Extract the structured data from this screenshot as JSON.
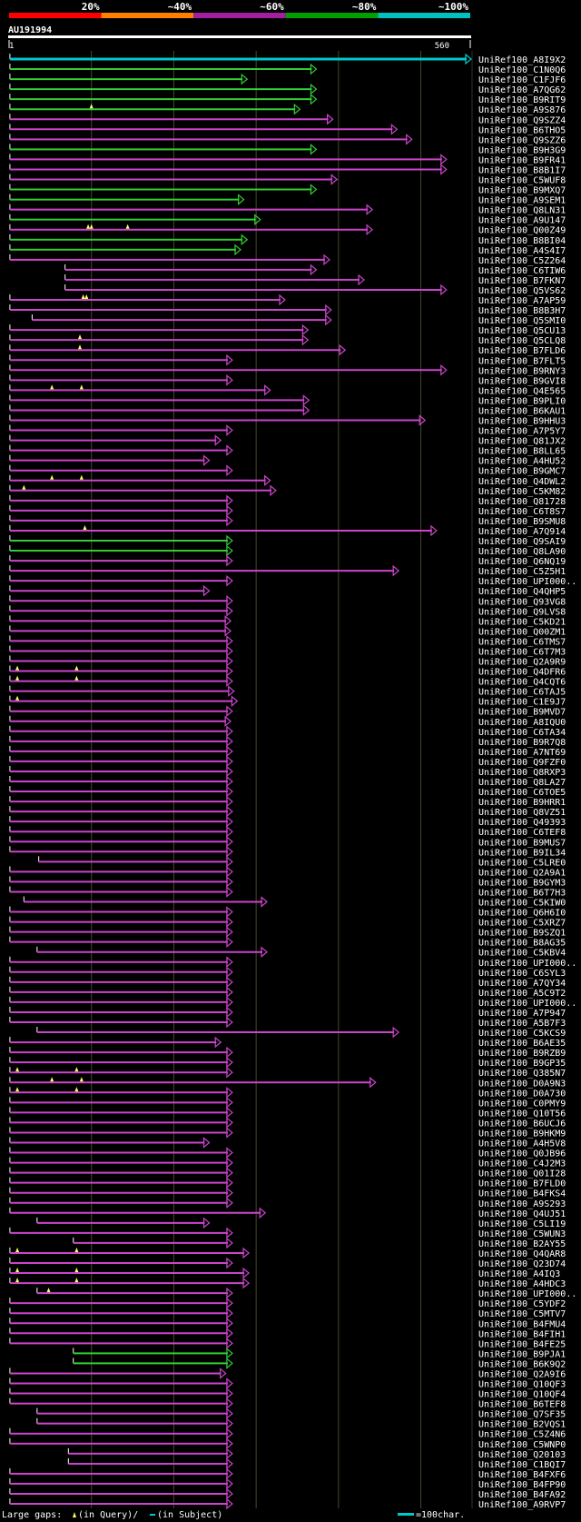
{
  "chart_data": {
    "type": "alignment-overview",
    "query": "AU191994",
    "query_start": "1",
    "query_end": "560",
    "query_length": 560,
    "percent_scale": {
      "labels": [
        "20%",
        "~40%",
        "~60%",
        "~80%",
        "~100%"
      ],
      "colors": [
        "#ff0000",
        "#ff8000",
        "#a020a0",
        "#00a000",
        "#00c0c0"
      ]
    },
    "gridlines": [
      100,
      200,
      300,
      400,
      500
    ],
    "legend": {
      "large_gaps": "Large gaps:",
      "in_query": "(in Query)/",
      "in_subject": "(in Subject)",
      "scale": "=100char."
    },
    "hits": [
      {
        "name": "UniRef100_A8I9X2",
        "s": 1,
        "e": 560,
        "c": "cyan"
      },
      {
        "name": "UniRef100_C1N0Q6",
        "s": 1,
        "e": 372,
        "c": "green"
      },
      {
        "name": "UniRef100_C1FJF6",
        "s": 1,
        "e": 288,
        "c": "green"
      },
      {
        "name": "UniRef100_A7QG62",
        "s": 1,
        "e": 372,
        "c": "green"
      },
      {
        "name": "UniRef100_B9RIT9",
        "s": 1,
        "e": 372,
        "c": "green"
      },
      {
        "name": "UniRef100_A9S876",
        "s": 1,
        "e": 352,
        "c": "green",
        "tri": [
          100
        ]
      },
      {
        "name": "UniRef100_Q9SZZ4",
        "s": 1,
        "e": 392,
        "c": "mag"
      },
      {
        "name": "UniRef100_B6THO5",
        "s": 1,
        "e": 470,
        "c": "mag"
      },
      {
        "name": "UniRef100_Q9SZZ6",
        "s": 1,
        "e": 488,
        "c": "mag"
      },
      {
        "name": "UniRef100_B9H3G9",
        "s": 1,
        "e": 372,
        "c": "green"
      },
      {
        "name": "UniRef100_B9FR41",
        "s": 1,
        "e": 530,
        "c": "mag"
      },
      {
        "name": "UniRef100_B8B1I7",
        "s": 1,
        "e": 530,
        "c": "mag"
      },
      {
        "name": "UniRef100_C5WUF8",
        "s": 1,
        "e": 397,
        "c": "mag"
      },
      {
        "name": "UniRef100_B9MXQ7",
        "s": 1,
        "e": 372,
        "c": "green"
      },
      {
        "name": "UniRef100_A9SEM1",
        "s": 1,
        "e": 284,
        "c": "green"
      },
      {
        "name": "UniRef100_Q8LN31",
        "s": 1,
        "e": 440,
        "c": "mag"
      },
      {
        "name": "UniRef100_A9U147",
        "s": 1,
        "e": 304,
        "c": "green"
      },
      {
        "name": "UniRef100_Q00Z49",
        "s": 1,
        "e": 440,
        "c": "mag",
        "tri": [
          96,
          100,
          144
        ]
      },
      {
        "name": "UniRef100_B8BI04",
        "s": 1,
        "e": 288,
        "c": "green"
      },
      {
        "name": "UniRef100_A4S4I7",
        "s": 1,
        "e": 280,
        "c": "green"
      },
      {
        "name": "UniRef100_C5Z264",
        "s": 1,
        "e": 388,
        "c": "mag"
      },
      {
        "name": "UniRef100_C6TIW6",
        "s": 68,
        "e": 372,
        "c": "mag"
      },
      {
        "name": "UniRef100_B7FKN7",
        "s": 68,
        "e": 430,
        "c": "mag"
      },
      {
        "name": "UniRef100_Q5VS62",
        "s": 68,
        "e": 530,
        "c": "mag"
      },
      {
        "name": "UniRef100_A7AP59",
        "s": 1,
        "e": 334,
        "c": "mag",
        "tri": [
          90,
          94
        ]
      },
      {
        "name": "UniRef100_B8B3H7",
        "s": 1,
        "e": 390,
        "c": "mag"
      },
      {
        "name": "UniRef100_Q5SMI0",
        "s": 28,
        "e": 390,
        "c": "mag"
      },
      {
        "name": "UniRef100_Q5CU13",
        "s": 1,
        "e": 362,
        "c": "mag"
      },
      {
        "name": "UniRef100_Q5CLQ8",
        "s": 1,
        "e": 362,
        "c": "mag",
        "tri": [
          86
        ]
      },
      {
        "name": "UniRef100_B7FLD6",
        "s": 1,
        "e": 407,
        "c": "mag",
        "tri": [
          86
        ]
      },
      {
        "name": "UniRef100_B7FLT5",
        "s": 1,
        "e": 270,
        "c": "mag"
      },
      {
        "name": "UniRef100_B9RNY3",
        "s": 1,
        "e": 530,
        "c": "mag"
      },
      {
        "name": "UniRef100_B9GVI8",
        "s": 1,
        "e": 270,
        "c": "mag"
      },
      {
        "name": "UniRef100_Q4E565",
        "s": 1,
        "e": 316,
        "c": "mag",
        "tri": [
          52,
          88
        ]
      },
      {
        "name": "UniRef100_B9PLI0",
        "s": 1,
        "e": 363,
        "c": "mag"
      },
      {
        "name": "UniRef100_B6KAU1",
        "s": 1,
        "e": 363,
        "c": "mag"
      },
      {
        "name": "UniRef100_B9HHU3",
        "s": 1,
        "e": 504,
        "c": "mag"
      },
      {
        "name": "UniRef100_A7P5Y7",
        "s": 1,
        "e": 270,
        "c": "mag"
      },
      {
        "name": "UniRef100_Q81JX2",
        "s": 1,
        "e": 256,
        "c": "mag"
      },
      {
        "name": "UniRef100_B8LL65",
        "s": 1,
        "e": 270,
        "c": "mag"
      },
      {
        "name": "UniRef100_A4HU52",
        "s": 1,
        "e": 242,
        "c": "mag"
      },
      {
        "name": "UniRef100_B9GMC7",
        "s": 1,
        "e": 270,
        "c": "mag"
      },
      {
        "name": "UniRef100_Q4DWL2",
        "s": 1,
        "e": 316,
        "c": "mag",
        "tri": [
          52,
          88
        ]
      },
      {
        "name": "UniRef100_C5KM82",
        "s": 1,
        "e": 323,
        "c": "mag",
        "tri": [
          18
        ]
      },
      {
        "name": "UniRef100_Q81728",
        "s": 1,
        "e": 270,
        "c": "mag"
      },
      {
        "name": "UniRef100_C6T8S7",
        "s": 1,
        "e": 270,
        "c": "mag"
      },
      {
        "name": "UniRef100_B9SMU8",
        "s": 1,
        "e": 270,
        "c": "mag"
      },
      {
        "name": "UniRef100_A7Q914",
        "s": 1,
        "e": 518,
        "c": "mag",
        "tri": [
          92
        ]
      },
      {
        "name": "UniRef100_Q9SAI9",
        "s": 1,
        "e": 270,
        "c": "green"
      },
      {
        "name": "UniRef100_Q8LA90",
        "s": 1,
        "e": 270,
        "c": "green"
      },
      {
        "name": "UniRef100_Q6NQ19",
        "s": 1,
        "e": 270,
        "c": "mag"
      },
      {
        "name": "UniRef100_C5Z5H1",
        "s": 1,
        "e": 472,
        "c": "mag"
      },
      {
        "name": "UniRef100_UPI000..",
        "s": 1,
        "e": 270,
        "c": "mag"
      },
      {
        "name": "UniRef100_Q4QHP5",
        "s": 1,
        "e": 242,
        "c": "mag"
      },
      {
        "name": "UniRef100_Q93VG8",
        "s": 1,
        "e": 270,
        "c": "mag"
      },
      {
        "name": "UniRef100_Q9LVS8",
        "s": 1,
        "e": 270,
        "c": "mag"
      },
      {
        "name": "UniRef100_C5KD21",
        "s": 1,
        "e": 268,
        "c": "mag"
      },
      {
        "name": "UniRef100_Q00ZM1",
        "s": 1,
        "e": 268,
        "c": "mag"
      },
      {
        "name": "UniRef100_C6TMS7",
        "s": 1,
        "e": 270,
        "c": "mag"
      },
      {
        "name": "UniRef100_C6T7M3",
        "s": 1,
        "e": 270,
        "c": "mag"
      },
      {
        "name": "UniRef100_Q2A9R9",
        "s": 1,
        "e": 270,
        "c": "mag"
      },
      {
        "name": "UniRef100_Q4DFR6",
        "s": 1,
        "e": 270,
        "c": "mag",
        "tri": [
          10,
          82
        ]
      },
      {
        "name": "UniRef100_Q4CQT6",
        "s": 1,
        "e": 270,
        "c": "mag",
        "tri": [
          10,
          82
        ]
      },
      {
        "name": "UniRef100_C6TAJ5",
        "s": 1,
        "e": 272,
        "c": "mag"
      },
      {
        "name": "UniRef100_C1E9J7",
        "s": 1,
        "e": 276,
        "c": "mag",
        "tri": [
          10
        ]
      },
      {
        "name": "UniRef100_B9MVD7",
        "s": 1,
        "e": 270,
        "c": "mag"
      },
      {
        "name": "UniRef100_A8IQU0",
        "s": 1,
        "e": 268,
        "c": "mag"
      },
      {
        "name": "UniRef100_C6TA34",
        "s": 1,
        "e": 270,
        "c": "mag"
      },
      {
        "name": "UniRef100_B9R7Q8",
        "s": 1,
        "e": 270,
        "c": "mag"
      },
      {
        "name": "UniRef100_A7NT69",
        "s": 1,
        "e": 270,
        "c": "mag"
      },
      {
        "name": "UniRef100_Q9FZF0",
        "s": 1,
        "e": 270,
        "c": "mag"
      },
      {
        "name": "UniRef100_Q8RXP3",
        "s": 1,
        "e": 270,
        "c": "mag"
      },
      {
        "name": "UniRef100_Q8LA27",
        "s": 1,
        "e": 270,
        "c": "mag"
      },
      {
        "name": "UniRef100_C6TOE5",
        "s": 1,
        "e": 270,
        "c": "mag"
      },
      {
        "name": "UniRef100_B9HRR1",
        "s": 1,
        "e": 270,
        "c": "mag"
      },
      {
        "name": "UniRef100_Q8VZ51",
        "s": 1,
        "e": 270,
        "c": "mag"
      },
      {
        "name": "UniRef100_Q49393",
        "s": 1,
        "e": 270,
        "c": "mag"
      },
      {
        "name": "UniRef100_C6TEF8",
        "s": 1,
        "e": 270,
        "c": "mag"
      },
      {
        "name": "UniRef100_B9MUS7",
        "s": 1,
        "e": 270,
        "c": "mag"
      },
      {
        "name": "UniRef100_B9IL34",
        "s": 1,
        "e": 270,
        "c": "mag"
      },
      {
        "name": "UniRef100_C5LRE0",
        "s": 36,
        "e": 270,
        "c": "mag"
      },
      {
        "name": "UniRef100_Q2A9A1",
        "s": 1,
        "e": 270,
        "c": "mag"
      },
      {
        "name": "UniRef100_B9GYM3",
        "s": 1,
        "e": 270,
        "c": "mag"
      },
      {
        "name": "UniRef100_B6T7H3",
        "s": 1,
        "e": 270,
        "c": "mag"
      },
      {
        "name": "UniRef100_C5KIW0",
        "s": 18,
        "e": 312,
        "c": "mag"
      },
      {
        "name": "UniRef100_Q6H6I0",
        "s": 1,
        "e": 270,
        "c": "mag"
      },
      {
        "name": "UniRef100_C5XRZ7",
        "s": 1,
        "e": 270,
        "c": "mag"
      },
      {
        "name": "UniRef100_B9SZQ1",
        "s": 1,
        "e": 270,
        "c": "mag"
      },
      {
        "name": "UniRef100_B8AG35",
        "s": 1,
        "e": 270,
        "c": "mag"
      },
      {
        "name": "UniRef100_C5KBV4",
        "s": 34,
        "e": 312,
        "c": "mag"
      },
      {
        "name": "UniRef100_UPI000..",
        "s": 1,
        "e": 270,
        "c": "mag"
      },
      {
        "name": "UniRef100_C6SYL3",
        "s": 1,
        "e": 270,
        "c": "mag"
      },
      {
        "name": "UniRef100_A7QY34",
        "s": 1,
        "e": 270,
        "c": "mag"
      },
      {
        "name": "UniRef100_A5C9T2",
        "s": 1,
        "e": 270,
        "c": "mag"
      },
      {
        "name": "UniRef100_UPI000..",
        "s": 1,
        "e": 270,
        "c": "mag"
      },
      {
        "name": "UniRef100_A7P947",
        "s": 1,
        "e": 270,
        "c": "mag"
      },
      {
        "name": "UniRef100_A5B7F3",
        "s": 1,
        "e": 270,
        "c": "mag"
      },
      {
        "name": "UniRef100_C5KCS9",
        "s": 34,
        "e": 472,
        "c": "mag"
      },
      {
        "name": "UniRef100_B6AE35",
        "s": 1,
        "e": 256,
        "c": "mag"
      },
      {
        "name": "UniRef100_B9RZB9",
        "s": 1,
        "e": 270,
        "c": "mag"
      },
      {
        "name": "UniRef100_B9GP35",
        "s": 1,
        "e": 270,
        "c": "mag"
      },
      {
        "name": "UniRef100_Q385N7",
        "s": 1,
        "e": 270,
        "c": "mag",
        "tri": [
          10,
          82
        ]
      },
      {
        "name": "UniRef100_D0A9N3",
        "s": 1,
        "e": 444,
        "c": "mag",
        "tri": [
          52,
          88
        ]
      },
      {
        "name": "UniRef100_D0A730",
        "s": 1,
        "e": 270,
        "c": "mag",
        "tri": [
          10,
          82
        ]
      },
      {
        "name": "UniRef100_C0PMY9",
        "s": 1,
        "e": 270,
        "c": "mag"
      },
      {
        "name": "UniRef100_Q10T56",
        "s": 1,
        "e": 270,
        "c": "mag"
      },
      {
        "name": "UniRef100_B6UCJ6",
        "s": 1,
        "e": 270,
        "c": "mag"
      },
      {
        "name": "UniRef100_B9HKM9",
        "s": 1,
        "e": 270,
        "c": "mag"
      },
      {
        "name": "UniRef100_A4H5V8",
        "s": 1,
        "e": 242,
        "c": "mag"
      },
      {
        "name": "UniRef100_Q0JB96",
        "s": 1,
        "e": 270,
        "c": "mag"
      },
      {
        "name": "UniRef100_C4J2M3",
        "s": 1,
        "e": 270,
        "c": "mag"
      },
      {
        "name": "UniRef100_Q01I28",
        "s": 1,
        "e": 270,
        "c": "mag"
      },
      {
        "name": "UniRef100_B7FLD0",
        "s": 1,
        "e": 270,
        "c": "mag"
      },
      {
        "name": "UniRef100_B4FKS4",
        "s": 1,
        "e": 270,
        "c": "mag"
      },
      {
        "name": "UniRef100_A9S293",
        "s": 1,
        "e": 270,
        "c": "mag"
      },
      {
        "name": "UniRef100_Q4UJ51",
        "s": 1,
        "e": 310,
        "c": "mag"
      },
      {
        "name": "UniRef100_C5LI19",
        "s": 34,
        "e": 242,
        "c": "mag"
      },
      {
        "name": "UniRef100_C5WUN3",
        "s": 1,
        "e": 270,
        "c": "mag"
      },
      {
        "name": "UniRef100_B2AY55",
        "s": 78,
        "e": 270,
        "c": "mag"
      },
      {
        "name": "UniRef100_Q4QAR8",
        "s": 1,
        "e": 290,
        "c": "mag",
        "tri": [
          10,
          82
        ]
      },
      {
        "name": "UniRef100_Q23D74",
        "s": 1,
        "e": 270,
        "c": "mag"
      },
      {
        "name": "UniRef100_A4IQ3",
        "s": 1,
        "e": 290,
        "c": "mag",
        "tri": [
          10,
          82
        ]
      },
      {
        "name": "UniRef100_A4HDC3",
        "s": 1,
        "e": 290,
        "c": "mag",
        "tri": [
          10,
          82
        ]
      },
      {
        "name": "UniRef100_UPI000..",
        "s": 34,
        "e": 270,
        "c": "mag",
        "tri": [
          48
        ]
      },
      {
        "name": "UniRef100_C5YDF2",
        "s": 1,
        "e": 270,
        "c": "mag"
      },
      {
        "name": "UniRef100_C5MTV7",
        "s": 1,
        "e": 270,
        "c": "mag"
      },
      {
        "name": "UniRef100_B4FMU4",
        "s": 1,
        "e": 270,
        "c": "mag"
      },
      {
        "name": "UniRef100_B4FIH1",
        "s": 1,
        "e": 270,
        "c": "mag"
      },
      {
        "name": "UniRef100_B4FE25",
        "s": 1,
        "e": 270,
        "c": "mag"
      },
      {
        "name": "UniRef100_B9PJA1",
        "s": 78,
        "e": 270,
        "c": "green"
      },
      {
        "name": "UniRef100_B6K9Q2",
        "s": 78,
        "e": 270,
        "c": "green"
      },
      {
        "name": "UniRef100_Q2A9I6",
        "s": 1,
        "e": 262,
        "c": "mag"
      },
      {
        "name": "UniRef100_Q10QF3",
        "s": 1,
        "e": 270,
        "c": "mag"
      },
      {
        "name": "UniRef100_Q10QF4",
        "s": 1,
        "e": 270,
        "c": "mag"
      },
      {
        "name": "UniRef100_B6TEF8",
        "s": 1,
        "e": 270,
        "c": "mag"
      },
      {
        "name": "UniRef100_Q7SF35",
        "s": 34,
        "e": 270,
        "c": "mag"
      },
      {
        "name": "UniRef100_B2VQS1",
        "s": 34,
        "e": 270,
        "c": "mag"
      },
      {
        "name": "UniRef100_C5Z4N6",
        "s": 1,
        "e": 270,
        "c": "mag"
      },
      {
        "name": "UniRef100_C5WNP0",
        "s": 1,
        "e": 270,
        "c": "mag"
      },
      {
        "name": "UniRef100_Q20103",
        "s": 72,
        "e": 270,
        "c": "mag"
      },
      {
        "name": "UniRef100_C1BQI7",
        "s": 72,
        "e": 270,
        "c": "mag"
      },
      {
        "name": "UniRef100_B4FXF6",
        "s": 1,
        "e": 270,
        "c": "mag"
      },
      {
        "name": "UniRef100_B4FP90",
        "s": 1,
        "e": 270,
        "c": "mag"
      },
      {
        "name": "UniRef100_B4FA92",
        "s": 1,
        "e": 270,
        "c": "mag"
      },
      {
        "name": "UniRef100_A9RVP7",
        "s": 1,
        "e": 270,
        "c": "mag"
      }
    ],
    "series_colors": {
      "cyan": "#00c8c8",
      "green": "#33cc33",
      "mag": "#cc44cc"
    },
    "marker_color": "#ffff66",
    "query_bar_color": "#ffffff"
  }
}
